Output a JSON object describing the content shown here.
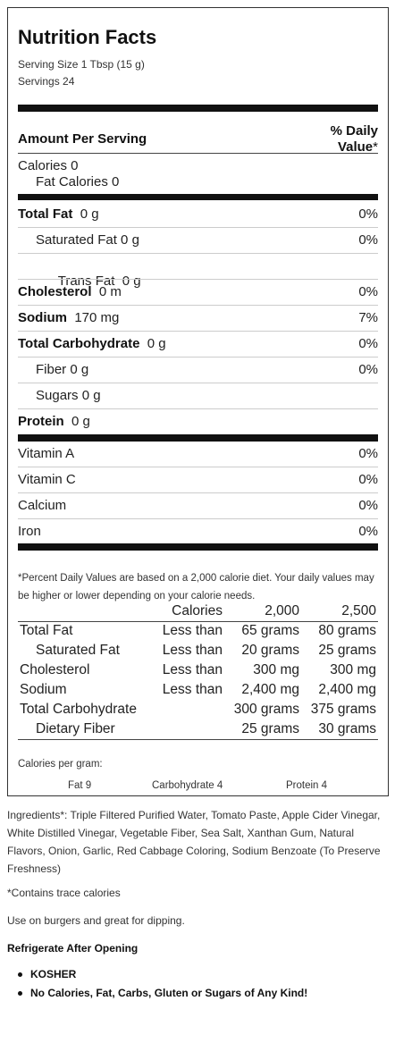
{
  "label": {
    "title": "Nutrition Facts",
    "serving_size": "Serving Size 1 Tbsp (15 g)",
    "servings": "Servings 24",
    "amount_per_serving": "Amount Per Serving",
    "daily_value_line1": "% Daily",
    "daily_value_line2": "Value",
    "daily_value_star": "*",
    "calories": "Calories 0",
    "fat_calories": "Fat Calories 0",
    "nutrients": [
      {
        "name": "Total Fat",
        "amount": "0 g",
        "dv": "0%"
      },
      {
        "name": "Saturated Fat 0 g",
        "amount": "",
        "dv": "0%"
      },
      {
        "name": "Trans Fat  0 g",
        "amount": "",
        "dv": ""
      },
      {
        "name": "Cholesterol",
        "amount": "0 m",
        "dv": "0%"
      },
      {
        "name": "Sodium",
        "amount": "170 mg",
        "dv": "7%"
      },
      {
        "name": "Total Carbohydrate",
        "amount": "0 g",
        "dv": "0%"
      },
      {
        "name": "Fiber 0 g",
        "amount": "",
        "dv": "0%"
      },
      {
        "name": "Sugars 0 g",
        "amount": "",
        "dv": ""
      },
      {
        "name": "Protein",
        "amount": "0 g",
        "dv": ""
      }
    ],
    "vitamins": [
      {
        "name": "Vitamin A",
        "dv": "0%"
      },
      {
        "name": "Vitamin C",
        "dv": "0%"
      },
      {
        "name": "Calcium",
        "dv": "0%"
      },
      {
        "name": "Iron",
        "dv": "0%"
      }
    ],
    "footnote": "*Percent Daily Values are based on a 2,000 calorie diet. Your daily values may be higher or lower depending on your calorie needs.",
    "reference_table": {
      "header": [
        "",
        "Calories",
        "2,000",
        "2,500"
      ],
      "rows": [
        [
          "Total Fat",
          "Less than",
          "65 grams",
          "80 grams"
        ],
        [
          "Saturated Fat",
          "Less than",
          "20 grams",
          "25 grams"
        ],
        [
          "Cholesterol",
          "Less than",
          "300 mg",
          "300 mg"
        ],
        [
          "Sodium",
          "Less than",
          "2,400 mg",
          "2,400 mg"
        ],
        [
          "Total Carbohydrate",
          "",
          "300 grams",
          "375 grams"
        ],
        [
          "Dietary Fiber",
          "",
          "25 grams",
          "30 grams"
        ]
      ]
    },
    "calories_per_gram": "Calories per gram:",
    "cpg_fat": "Fat 9",
    "cpg_carb": "Carbohydrate 4",
    "cpg_protein": "Protein 4"
  },
  "details": {
    "ingredients": "Ingredients*: Triple Filtered Purified Water, Tomato Paste, Apple Cider Vinegar, White Distilled Vinegar, Vegetable Fiber, Sea Salt, Xanthan Gum, Natural Flavors, Onion, Garlic, Red Cabbage Coloring, Sodium Benzoate (To Preserve Freshness)",
    "trace_note": "*Contains trace calories",
    "usage": "Use on burgers and great for dipping.",
    "storage": "Refrigerate After Opening",
    "bullets": [
      "KOSHER",
      "No Calories, Fat, Carbs, Gluten or Sugars of Any Kind!"
    ]
  }
}
